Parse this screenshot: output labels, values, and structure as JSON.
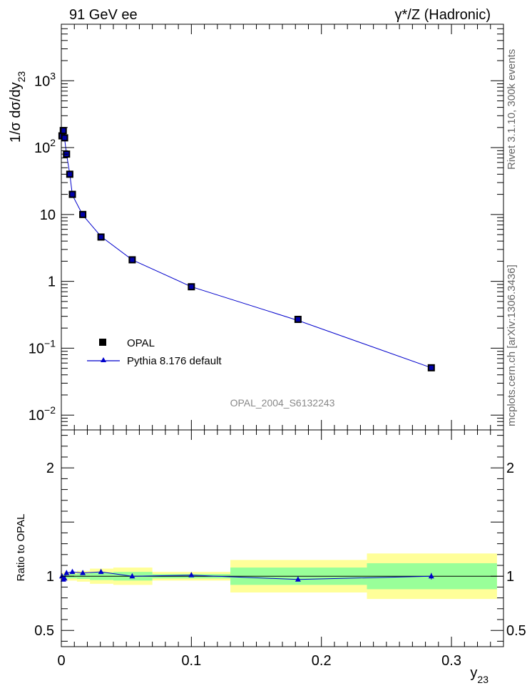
{
  "header": {
    "left_title": "91 GeV ee",
    "right_title": "γ*/Z (Hadronic)"
  },
  "side_labels": {
    "rivet": "Rivet 3.1.10,  300k events",
    "mcplots": "mcplots.cern.ch [arXiv:1306.3436]"
  },
  "analysis_id": "OPAL_2004_S6132243",
  "colors": {
    "data_marker": "#000000",
    "data_fill": "#0000aa",
    "mc_line": "#0000cc",
    "band_outer": "#ffff99",
    "band_inner": "#99ff99"
  },
  "chart_data": [
    {
      "type": "line",
      "scale": "log",
      "title": "91 GeV ee",
      "ylabel_main": "1/σ dσ/dy",
      "ylabel_sub": "23",
      "ylim": [
        0.006,
        7000
      ],
      "yticks": [
        {
          "value": 0.01,
          "label": "10",
          "exp": "−2"
        },
        {
          "value": 0.1,
          "label": "10",
          "exp": "−1"
        },
        {
          "value": 1,
          "label": "1",
          "exp": ""
        },
        {
          "value": 10,
          "label": "10",
          "exp": ""
        },
        {
          "value": 100,
          "label": "10",
          "exp": "2"
        },
        {
          "value": 1000,
          "label": "10",
          "exp": "3"
        }
      ],
      "legend": {
        "position": "lower-left",
        "entries": [
          {
            "name": "OPAL",
            "marker": "square"
          },
          {
            "name": "Pythia 8.176 default",
            "marker": "triangle-line"
          }
        ]
      },
      "series": [
        {
          "name": "OPAL",
          "x": [
            0.0005,
            0.0015,
            0.0025,
            0.004,
            0.0065,
            0.0085,
            0.0165,
            0.0305,
            0.0545,
            0.1,
            0.182,
            0.2845
          ],
          "y": [
            150,
            180,
            140,
            80,
            40,
            20,
            10,
            4.6,
            2.1,
            0.83,
            0.27,
            0.051
          ]
        },
        {
          "name": "Pythia 8.176 default",
          "x": [
            0.0005,
            0.0015,
            0.0025,
            0.004,
            0.0065,
            0.0085,
            0.0165,
            0.0305,
            0.0545,
            0.1,
            0.182,
            0.2845
          ],
          "y": [
            145,
            175,
            135,
            80,
            40,
            19.5,
            9.8,
            4.7,
            2.1,
            0.83,
            0.26,
            0.051
          ]
        }
      ]
    },
    {
      "type": "line",
      "ylabel": "Ratio to OPAL",
      "xlabel_main": "y",
      "xlabel_sub": "23",
      "xlim": [
        0,
        0.34
      ],
      "ylim": [
        0.35,
        2.35
      ],
      "yticks": [
        0.5,
        1,
        2
      ],
      "ytick_labels": [
        "0.5",
        "1",
        "2"
      ],
      "xticks": [
        0,
        0.1,
        0.2,
        0.3
      ],
      "xtick_labels": [
        "0",
        "0.1",
        "0.2",
        "0.3"
      ],
      "bands": [
        {
          "x0": 0.0,
          "x1": 0.002,
          "outer": 0.03,
          "inner": 0.015
        },
        {
          "x0": 0.002,
          "x1": 0.005,
          "outer": 0.04,
          "inner": 0.02
        },
        {
          "x0": 0.005,
          "x1": 0.012,
          "outer": 0.04,
          "inner": 0.02
        },
        {
          "x0": 0.012,
          "x1": 0.022,
          "outer": 0.05,
          "inner": 0.025
        },
        {
          "x0": 0.022,
          "x1": 0.04,
          "outer": 0.07,
          "inner": 0.035
        },
        {
          "x0": 0.04,
          "x1": 0.07,
          "outer": 0.08,
          "inner": 0.04
        },
        {
          "x0": 0.07,
          "x1": 0.13,
          "outer": 0.04,
          "inner": 0.02
        },
        {
          "x0": 0.13,
          "x1": 0.235,
          "outer": 0.15,
          "inner": 0.08
        },
        {
          "x0": 0.235,
          "x1": 0.335,
          "outer": 0.21,
          "inner": 0.12
        }
      ],
      "series": [
        {
          "name": "Pythia 8.176 / OPAL",
          "x": [
            0.0005,
            0.0015,
            0.0025,
            0.004,
            0.0085,
            0.0165,
            0.0305,
            0.0545,
            0.1,
            0.182,
            0.2845
          ],
          "y": [
            1.0,
            0.97,
            0.98,
            1.03,
            1.04,
            1.03,
            1.04,
            1.0,
            1.01,
            0.97,
            1.0
          ],
          "err": [
            0.01,
            0.01,
            0.01,
            0.01,
            0.01,
            0.01,
            0.01,
            0.01,
            0.01,
            0.01,
            0.03
          ]
        }
      ]
    }
  ]
}
